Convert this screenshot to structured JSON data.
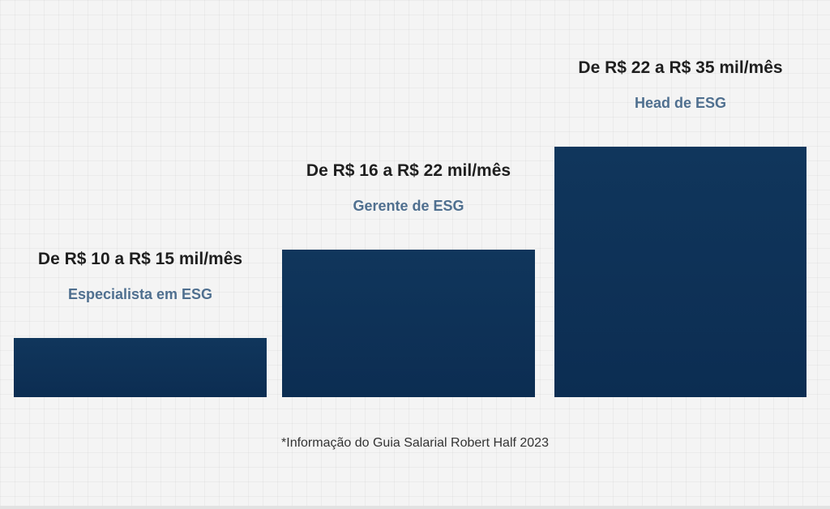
{
  "chart_data": {
    "type": "bar",
    "categories": [
      "Especialista em ESG",
      "Gerente de ESG",
      "Head de ESG"
    ],
    "range_labels": [
      "De R$ 10 a R$ 15 mil/mês",
      "De R$ 16 a R$ 22 mil/mês",
      "De R$ 22 a R$ 35 mil/mês"
    ],
    "ranges": [
      [
        10,
        15
      ],
      [
        16,
        22
      ],
      [
        22,
        35
      ]
    ],
    "values": [
      1,
      2.5,
      4.25
    ],
    "ylim": [
      0,
      4.25
    ],
    "colors": {
      "bar": "#0c2d52",
      "role_text": "#4f6f8f",
      "range_text": "#1f1f1f"
    },
    "footnote": "*Informação do Guia Salarial Robert Half 2023"
  }
}
